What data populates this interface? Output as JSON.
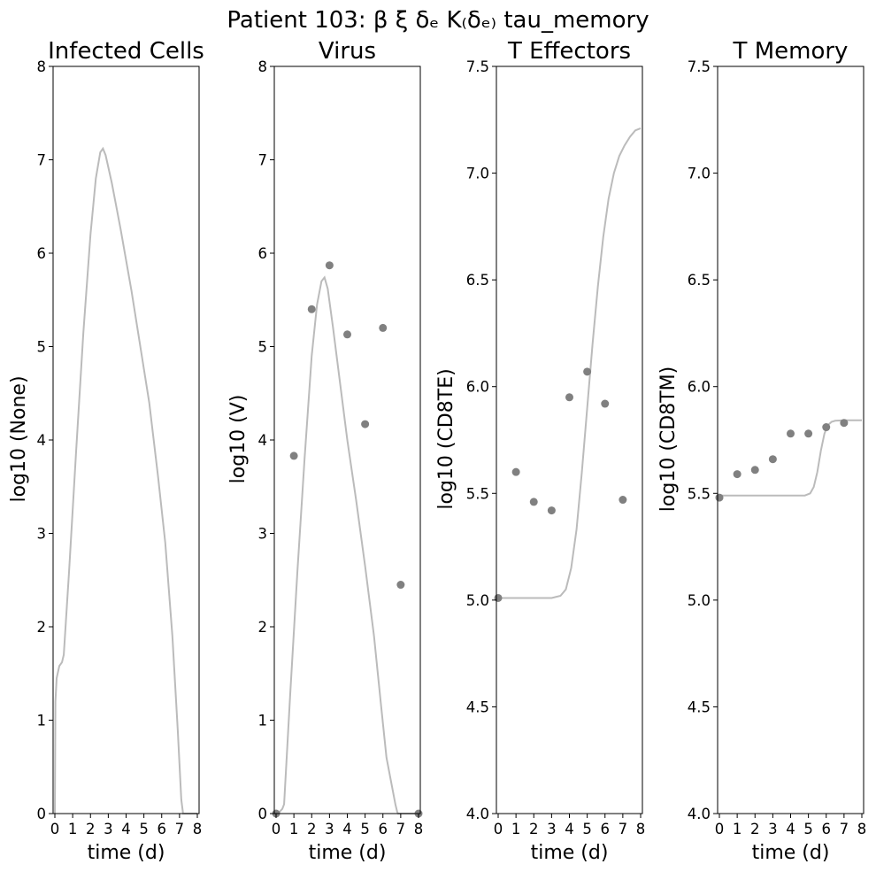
{
  "figure_title": "Patient 103: β ξ δₑ K₍δₑ₎ tau_memory",
  "chart_data": [
    {
      "type": "line",
      "title": "Infected Cells",
      "xlabel": "time (d)",
      "ylabel": "log10 (None)",
      "xlim": [
        -0.1,
        8.1
      ],
      "ylim": [
        0,
        8
      ],
      "xticks": [
        0,
        1,
        2,
        3,
        4,
        5,
        6,
        7,
        8
      ],
      "yticks": [
        0,
        1,
        2,
        3,
        4,
        5,
        6,
        7,
        8
      ],
      "ytick_labels": [
        "0",
        "1",
        "2",
        "3",
        "4",
        "5",
        "6",
        "7",
        "8"
      ],
      "curve": {
        "x": [
          0,
          0.03,
          0.1,
          0.25,
          0.4,
          0.5,
          0.8,
          1.2,
          1.6,
          2.0,
          2.3,
          2.55,
          2.7,
          2.85,
          3.2,
          3.7,
          4.3,
          4.8,
          5.3,
          5.8,
          6.2,
          6.6,
          6.9,
          7.1,
          7.2,
          8.0
        ],
        "y": [
          0,
          1.2,
          1.45,
          1.58,
          1.62,
          1.7,
          2.6,
          3.9,
          5.15,
          6.2,
          6.8,
          7.08,
          7.12,
          7.05,
          6.75,
          6.25,
          5.6,
          5.0,
          4.4,
          3.6,
          2.9,
          1.9,
          0.9,
          0.15,
          0,
          0
        ]
      },
      "points": {
        "x": [],
        "y": []
      }
    },
    {
      "type": "scatter",
      "title": "Virus",
      "xlabel": "time (d)",
      "ylabel": "log10 (V)",
      "xlim": [
        -0.1,
        8.1
      ],
      "ylim": [
        0,
        8
      ],
      "xticks": [
        0,
        1,
        2,
        3,
        4,
        5,
        6,
        7,
        8
      ],
      "yticks": [
        0,
        1,
        2,
        3,
        4,
        5,
        6,
        7,
        8
      ],
      "ytick_labels": [
        "0",
        "1",
        "2",
        "3",
        "4",
        "5",
        "6",
        "7",
        "8"
      ],
      "curve": {
        "x": [
          0,
          0.2,
          0.35,
          0.45,
          0.8,
          1.2,
          1.6,
          2.0,
          2.3,
          2.55,
          2.72,
          2.9,
          3.2,
          3.6,
          4.0,
          4.5,
          5.0,
          5.5,
          5.9,
          6.2,
          6.5,
          6.7,
          6.8,
          6.85,
          8.0
        ],
        "y": [
          0,
          0.02,
          0.05,
          0.1,
          1.3,
          2.6,
          3.8,
          4.9,
          5.45,
          5.7,
          5.74,
          5.62,
          5.2,
          4.6,
          4.0,
          3.35,
          2.65,
          1.9,
          1.15,
          0.6,
          0.3,
          0.1,
          0.02,
          0,
          0
        ]
      },
      "points": {
        "x": [
          0,
          1,
          2,
          3,
          4,
          5,
          6,
          7,
          8
        ],
        "y": [
          0.0,
          3.83,
          5.4,
          5.87,
          5.13,
          4.17,
          5.2,
          2.45,
          0.0
        ]
      }
    },
    {
      "type": "scatter",
      "title": "T Effectors",
      "xlabel": "time (d)",
      "ylabel": "log10 (CD8TE)",
      "xlim": [
        -0.1,
        8.1
      ],
      "ylim": [
        4.0,
        7.5
      ],
      "xticks": [
        0,
        1,
        2,
        3,
        4,
        5,
        6,
        7,
        8
      ],
      "yticks": [
        4.0,
        4.5,
        5.0,
        5.5,
        6.0,
        6.5,
        7.0,
        7.5
      ],
      "ytick_labels": [
        "4.0",
        "4.5",
        "5.0",
        "5.5",
        "6.0",
        "6.5",
        "7.0",
        "7.5"
      ],
      "curve": {
        "x": [
          0,
          1,
          2,
          3,
          3.5,
          3.8,
          4.1,
          4.4,
          4.7,
          5.0,
          5.3,
          5.6,
          5.9,
          6.2,
          6.5,
          6.8,
          7.1,
          7.4,
          7.7,
          8.0
        ],
        "y": [
          5.01,
          5.01,
          5.01,
          5.01,
          5.02,
          5.05,
          5.15,
          5.33,
          5.6,
          5.9,
          6.2,
          6.47,
          6.7,
          6.88,
          7.0,
          7.08,
          7.13,
          7.17,
          7.2,
          7.21
        ]
      },
      "points": {
        "x": [
          0,
          1,
          2,
          3,
          4,
          5,
          6,
          7
        ],
        "y": [
          5.01,
          5.6,
          5.46,
          5.42,
          5.95,
          6.07,
          5.92,
          5.47
        ]
      }
    },
    {
      "type": "scatter",
      "title": "T Memory",
      "xlabel": "time (d)",
      "ylabel": "log10 (CD8TM)",
      "xlim": [
        -0.1,
        8.1
      ],
      "ylim": [
        4.0,
        7.5
      ],
      "xticks": [
        0,
        1,
        2,
        3,
        4,
        5,
        6,
        7,
        8
      ],
      "yticks": [
        4.0,
        4.5,
        5.0,
        5.5,
        6.0,
        6.5,
        7.0,
        7.5
      ],
      "ytick_labels": [
        "4.0",
        "4.5",
        "5.0",
        "5.5",
        "6.0",
        "6.5",
        "7.0",
        "7.5"
      ],
      "curve": {
        "x": [
          0,
          1,
          2,
          3,
          4,
          4.8,
          5.1,
          5.3,
          5.5,
          5.7,
          5.9,
          6.1,
          6.3,
          6.5,
          7.0,
          8.0
        ],
        "y": [
          5.49,
          5.49,
          5.49,
          5.49,
          5.49,
          5.49,
          5.5,
          5.53,
          5.6,
          5.7,
          5.78,
          5.82,
          5.835,
          5.84,
          5.842,
          5.842
        ]
      },
      "points": {
        "x": [
          0,
          1,
          2,
          3,
          4,
          5,
          6,
          7
        ],
        "y": [
          5.48,
          5.59,
          5.61,
          5.66,
          5.78,
          5.78,
          5.81,
          5.83
        ]
      }
    }
  ]
}
